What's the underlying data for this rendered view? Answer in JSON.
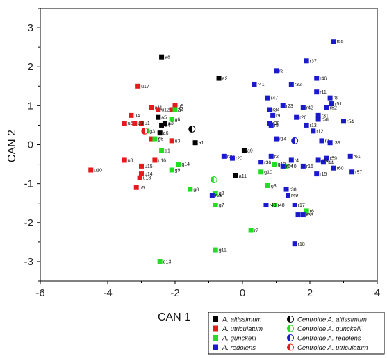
{
  "chart_data": {
    "type": "scatter",
    "xlabel": "CAN 1",
    "ylabel": "CAN 2",
    "xlim": [
      -6,
      4
    ],
    "ylim": [
      -3.5,
      3.5
    ],
    "xticks": [
      "-6",
      "-4",
      "-2",
      "0",
      "2",
      "4"
    ],
    "yticks": [
      "3",
      "2",
      "1",
      "0",
      "-1",
      "-2",
      "-3"
    ],
    "colors": {
      "altissimum": "#000000",
      "utriculatum": "#e41a1c",
      "gunckelii": "#22dd22",
      "redolens": "#1a1acc"
    },
    "legend": [
      {
        "label": "A. altissimum",
        "color": "#000000",
        "shape": "square"
      },
      {
        "label": "Centroide A. altissimum",
        "color": "#000000",
        "shape": "half-circle"
      },
      {
        "label": "A. utriculatum",
        "color": "#e41a1c",
        "shape": "square"
      },
      {
        "label": "Centroide A. gunckelii",
        "color": "#22dd22",
        "shape": "half-circle"
      },
      {
        "label": "A. gunckelii",
        "color": "#22dd22",
        "shape": "square"
      },
      {
        "label": "Centroide A. redolens",
        "color": "#1a1acc",
        "shape": "half-circle"
      },
      {
        "label": "A. redolens",
        "color": "#1a1acc",
        "shape": "square"
      },
      {
        "label": "Centroide A. utriculatum",
        "color": "#e41a1c",
        "shape": "half-circle"
      }
    ],
    "series": [
      {
        "name": "A. altissimum",
        "key": "altissimum",
        "points": [
          {
            "x": -2.4,
            "y": 2.25,
            "label": "a8"
          },
          {
            "x": -0.7,
            "y": 1.7,
            "label": "a2"
          },
          {
            "x": -2.5,
            "y": 0.7,
            "label": "a5"
          },
          {
            "x": -2.4,
            "y": 0.5,
            "label": "a4"
          },
          {
            "x": -2.45,
            "y": 0.3,
            "label": "a6"
          },
          {
            "x": -2.3,
            "y": 0.55,
            "label": "a3"
          },
          {
            "x": -1.4,
            "y": 0.05,
            "label": "a1"
          },
          {
            "x": 0.05,
            "y": -0.15,
            "label": "a9"
          },
          {
            "x": -0.2,
            "y": -0.8,
            "label": "a11"
          }
        ]
      },
      {
        "name": "A. utriculatum",
        "key": "utriculatum",
        "points": [
          {
            "x": -3.1,
            "y": 1.5,
            "label": "u17"
          },
          {
            "x": -2.7,
            "y": 0.95,
            "label": "u11"
          },
          {
            "x": -3.3,
            "y": 0.75,
            "label": "u4"
          },
          {
            "x": -3.0,
            "y": 0.55,
            "label": "u1"
          },
          {
            "x": -3.5,
            "y": 0.55,
            "label": "u5"
          },
          {
            "x": -2.5,
            "y": 0.9,
            "label": "u12"
          },
          {
            "x": -2.0,
            "y": 1.0,
            "label": "u9"
          },
          {
            "x": -2.1,
            "y": 0.9,
            "label": "u2"
          },
          {
            "x": -3.2,
            "y": 0.55,
            "label": "u3"
          },
          {
            "x": -2.7,
            "y": 0.15,
            "label": "u7"
          },
          {
            "x": -2.1,
            "y": 0.1,
            "label": "u3"
          },
          {
            "x": -3.5,
            "y": -0.4,
            "label": "u8"
          },
          {
            "x": -3.0,
            "y": -0.55,
            "label": "u15"
          },
          {
            "x": -2.6,
            "y": -0.4,
            "label": "u16"
          },
          {
            "x": -3.0,
            "y": -0.75,
            "label": "u14"
          },
          {
            "x": -3.05,
            "y": -0.85,
            "label": "u18"
          },
          {
            "x": -3.15,
            "y": -1.1,
            "label": "u5"
          },
          {
            "x": -4.5,
            "y": -0.65,
            "label": "u10"
          }
        ]
      },
      {
        "name": "A. gunckelii",
        "key": "gunckelii",
        "points": [
          {
            "x": -2.0,
            "y": 0.9,
            "label": "g4"
          },
          {
            "x": -2.1,
            "y": 0.65,
            "label": "g6"
          },
          {
            "x": -2.6,
            "y": 0.15,
            "label": "g5"
          },
          {
            "x": -2.85,
            "y": 0.35,
            "label": "g3"
          },
          {
            "x": -2.4,
            "y": -0.15,
            "label": "g1"
          },
          {
            "x": -1.9,
            "y": -0.5,
            "label": "g14"
          },
          {
            "x": -2.1,
            "y": -0.65,
            "label": "g9"
          },
          {
            "x": -1.55,
            "y": -1.15,
            "label": "g8"
          },
          {
            "x": -0.8,
            "y": -1.25,
            "label": "g2"
          },
          {
            "x": -0.8,
            "y": -1.55,
            "label": "g7"
          },
          {
            "x": 0.25,
            "y": -2.2,
            "label": "r7"
          },
          {
            "x": -0.8,
            "y": -2.7,
            "label": "g11"
          },
          {
            "x": -2.45,
            "y": -3.0,
            "label": "g13"
          },
          {
            "x": 0.55,
            "y": -0.7,
            "label": "g10"
          },
          {
            "x": 0.75,
            "y": -1.05,
            "label": "g3"
          },
          {
            "x": 0.95,
            "y": -1.55,
            "label": "r48"
          },
          {
            "x": 0.95,
            "y": -0.5,
            "label": "g12"
          },
          {
            "x": 1.9,
            "y": -1.7,
            "label": "r6"
          },
          {
            "x": 1.3,
            "y": -0.55,
            "label": "r40"
          }
        ]
      },
      {
        "name": "A. redolens",
        "key": "redolens",
        "points": [
          {
            "x": 2.7,
            "y": 2.65,
            "label": "r55"
          },
          {
            "x": 1.9,
            "y": 2.15,
            "label": "r37"
          },
          {
            "x": 1.0,
            "y": 1.9,
            "label": "r3"
          },
          {
            "x": 2.2,
            "y": 1.7,
            "label": "r46"
          },
          {
            "x": 0.35,
            "y": 1.55,
            "label": "r41"
          },
          {
            "x": 1.45,
            "y": 1.55,
            "label": "r32"
          },
          {
            "x": 2.2,
            "y": 1.35,
            "label": "r11"
          },
          {
            "x": 0.75,
            "y": 1.2,
            "label": "r47"
          },
          {
            "x": 2.6,
            "y": 1.2,
            "label": "r8"
          },
          {
            "x": 2.65,
            "y": 1.05,
            "label": "r51"
          },
          {
            "x": 2.5,
            "y": 0.95,
            "label": "r52"
          },
          {
            "x": 1.2,
            "y": 1.0,
            "label": "r23"
          },
          {
            "x": 1.8,
            "y": 0.95,
            "label": "r42"
          },
          {
            "x": 0.8,
            "y": 0.9,
            "label": "r34"
          },
          {
            "x": 0.9,
            "y": 0.75,
            "label": "r9"
          },
          {
            "x": 1.6,
            "y": 0.7,
            "label": "r26"
          },
          {
            "x": 2.25,
            "y": 0.75,
            "label": "r31"
          },
          {
            "x": 2.25,
            "y": 0.65,
            "label": "r58"
          },
          {
            "x": 3.0,
            "y": 0.6,
            "label": "r54"
          },
          {
            "x": 0.8,
            "y": 0.55,
            "label": "r30"
          },
          {
            "x": 0.85,
            "y": 0.5,
            "label": "r5"
          },
          {
            "x": 1.9,
            "y": 0.5,
            "label": "r13"
          },
          {
            "x": 2.1,
            "y": 0.35,
            "label": "r12"
          },
          {
            "x": 2.35,
            "y": 0.1,
            "label": "r2"
          },
          {
            "x": 2.6,
            "y": 0.05,
            "label": "r39"
          },
          {
            "x": 1.0,
            "y": 0.15,
            "label": "r14"
          },
          {
            "x": -0.55,
            "y": -0.3,
            "label": "r19"
          },
          {
            "x": -0.3,
            "y": -0.35,
            "label": "r20"
          },
          {
            "x": 0.85,
            "y": -0.3,
            "label": "r2"
          },
          {
            "x": 0.55,
            "y": -0.45,
            "label": "r36"
          },
          {
            "x": 1.45,
            "y": -0.4,
            "label": "r4"
          },
          {
            "x": 2.5,
            "y": -0.35,
            "label": "r59"
          },
          {
            "x": 2.4,
            "y": -0.45,
            "label": "r44"
          },
          {
            "x": 2.25,
            "y": -0.4,
            "label": "r24"
          },
          {
            "x": 1.2,
            "y": -0.55,
            "label": "r64"
          },
          {
            "x": 1.8,
            "y": -0.55,
            "label": "r16"
          },
          {
            "x": 2.7,
            "y": -0.6,
            "label": "r60"
          },
          {
            "x": 3.2,
            "y": -0.3,
            "label": "r61"
          },
          {
            "x": 3.25,
            "y": -0.7,
            "label": "r57"
          },
          {
            "x": 2.2,
            "y": -0.75,
            "label": "r15"
          },
          {
            "x": 1.3,
            "y": -1.15,
            "label": "r38"
          },
          {
            "x": 1.35,
            "y": -1.3,
            "label": "r49"
          },
          {
            "x": 1.55,
            "y": -1.55,
            "label": "r17"
          },
          {
            "x": 1.65,
            "y": -1.8,
            "label": "r43"
          },
          {
            "x": 1.8,
            "y": -1.8,
            "label": "r33"
          },
          {
            "x": 0.7,
            "y": -1.55,
            "label": "r48"
          },
          {
            "x": -0.9,
            "y": -1.3,
            "label": "r28"
          },
          {
            "x": 1.55,
            "y": -2.55,
            "label": "r18"
          }
        ]
      }
    ],
    "centroids": [
      {
        "name": "Centroide A. altissimum",
        "key": "altissimum",
        "x": -1.5,
        "y": 0.4
      },
      {
        "name": "Centroide A. gunckelii",
        "key": "gunckelii",
        "x": -0.85,
        "y": -0.9
      },
      {
        "name": "Centroide A. redolens",
        "key": "redolens",
        "x": 1.55,
        "y": 0.1
      },
      {
        "name": "Centroide A. utriculatum",
        "key": "utriculatum",
        "x": -2.9,
        "y": 0.35
      }
    ]
  }
}
